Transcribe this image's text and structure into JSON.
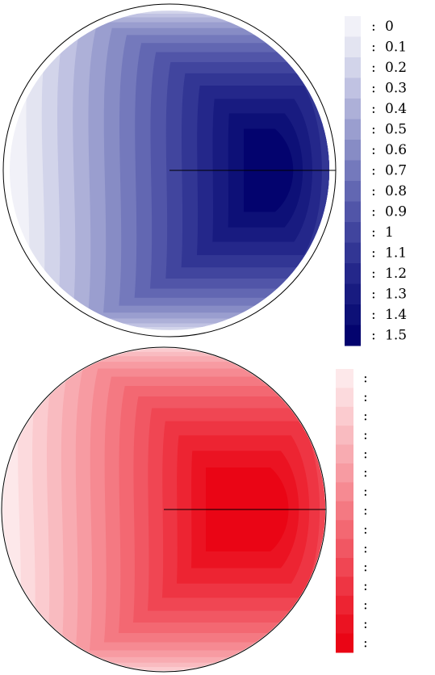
{
  "top_disk": {
    "fill_scale": [
      "#f1f1f8",
      "#e3e4f1",
      "#d2d4ea",
      "#c0c2e2",
      "#adb0d8",
      "#9a9ecf",
      "#878cc5",
      "#7479bc",
      "#6267b2",
      "#5155a8",
      "#41459e",
      "#323694",
      "#24278a",
      "#181b80",
      "#0d1077",
      "#03036e"
    ],
    "legend_labels": [
      "0",
      "0.1",
      "0.2",
      "0.3",
      "0.4",
      "0.5",
      "0.6",
      "0.7",
      "0.8",
      "0.9",
      "1",
      "1.1",
      "1.2",
      "1.3",
      "1.4",
      "1.5"
    ],
    "legend_prefix": ":"
  },
  "bottom_disk": {
    "fill_scale": [
      "#fde8ea",
      "#fcdadd",
      "#fbcbcf",
      "#f9bbc0",
      "#f8abb1",
      "#f79ba2",
      "#f68a92",
      "#f47982",
      "#f36872",
      "#f15763",
      "#f04653",
      "#ee3543",
      "#ed2432",
      "#eb1322",
      "#ea0515"
    ],
    "legend_prefix": ":"
  }
}
